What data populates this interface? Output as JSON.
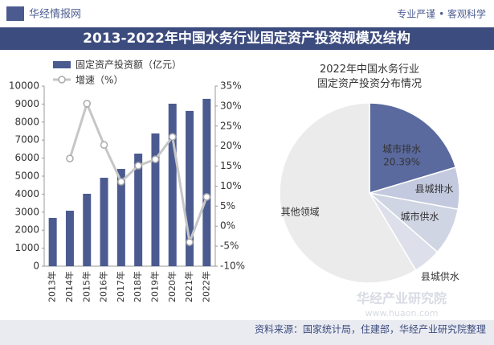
{
  "header": {
    "logo": "华经情报网",
    "slogan": "专业严谨 • 客观科学",
    "title": "2013-2022年中国水务行业固定资产投资规模及结构"
  },
  "watermark": {
    "name": "华经产业研究院",
    "url": "www.huaon.com"
  },
  "footer": {
    "source": "资料来源：国家统计局，住建部，华经产业研究院整理"
  },
  "chart_data": [
    {
      "type": "bar-line",
      "categories": [
        "2013年",
        "2014年",
        "2015年",
        "2016年",
        "2017年",
        "2018年",
        "2019年",
        "2020年",
        "2021年",
        "2022年"
      ],
      "series": [
        {
          "name": "固定资产投资额（亿元）",
          "color": "#4b5b90",
          "values": [
            2680,
            3080,
            4020,
            4910,
            5400,
            6250,
            7370,
            9020,
            8620,
            9290
          ]
        },
        {
          "name": "增速（%）",
          "color": "#c6c6c6",
          "axis": "y2",
          "values": [
            null,
            16.9,
            30.6,
            20.3,
            11.1,
            15.1,
            16.7,
            22.3,
            -4,
            7.3
          ]
        }
      ],
      "ylim": [
        0,
        10000
      ],
      "yticks": [
        0,
        1000,
        2000,
        3000,
        4000,
        5000,
        6000,
        7000,
        8000,
        9000,
        10000
      ],
      "y2lim": [
        -10,
        35
      ],
      "y2ticks": [
        {
          "value": -10,
          "label": "-10%"
        },
        {
          "value": -5,
          "label": "-5%"
        },
        {
          "value": 0,
          "label": "0%"
        },
        {
          "value": 5,
          "label": "5%"
        },
        {
          "value": 10,
          "label": "10%"
        },
        {
          "value": 15,
          "label": "15%"
        },
        {
          "value": 20,
          "label": "20%"
        },
        {
          "value": 25,
          "label": "25%"
        },
        {
          "value": 30,
          "label": "30%"
        },
        {
          "value": 35,
          "label": "35%"
        }
      ],
      "legend": "top-left"
    },
    {
      "type": "pie",
      "title": "2022年中国水务行业固定资产投资分布情况",
      "categories": [
        "城市排水",
        "县城排水",
        "城市供水",
        "县城供水",
        "其他领域"
      ],
      "values": [
        20.39,
        7.5,
        8.5,
        5,
        58.61
      ],
      "value_labels": [
        "20.39%",
        null,
        null,
        null,
        null
      ],
      "colors": [
        "#5a6a9f",
        "#c3c9de",
        "#d0d5e4",
        "#dde0ea",
        "#ebebeb"
      ]
    }
  ]
}
